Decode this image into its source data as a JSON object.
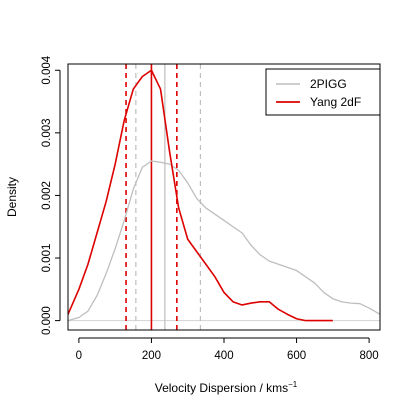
{
  "chart_data": {
    "type": "line",
    "xlabel": "Velocity Dispersion / kms",
    "xlabel_superscript": "−1",
    "ylabel": "Density",
    "xlim": [
      -30,
      830
    ],
    "ylim": [
      -0.00015,
      0.0041
    ],
    "x_ticks": [
      0,
      200,
      400,
      600,
      800
    ],
    "x_tick_labels": [
      "0",
      "200",
      "400",
      "600",
      "800"
    ],
    "y_ticks": [
      0.0,
      0.001,
      0.002,
      0.003,
      0.004
    ],
    "y_tick_labels": [
      "0.000",
      "0.001",
      "0.002",
      "0.003",
      "0.004"
    ],
    "grid": false,
    "legend_position": "top-right",
    "baseline_y": 0,
    "series": [
      {
        "name": "2PIGG",
        "color": "#bebebe",
        "x": [
          -30,
          0,
          25,
          50,
          75,
          100,
          125,
          150,
          175,
          200,
          225,
          250,
          275,
          300,
          325,
          350,
          375,
          400,
          425,
          450,
          475,
          500,
          525,
          550,
          575,
          600,
          625,
          650,
          675,
          700,
          725,
          750,
          775,
          800,
          830
        ],
        "y": [
          0.0,
          5e-05,
          0.00015,
          0.0004,
          0.00075,
          0.00115,
          0.0016,
          0.0021,
          0.00245,
          0.00255,
          0.00253,
          0.0025,
          0.0024,
          0.0022,
          0.00195,
          0.0018,
          0.0017,
          0.0016,
          0.0015,
          0.0014,
          0.0012,
          0.00105,
          0.00095,
          0.0009,
          0.00085,
          0.0008,
          0.0007,
          0.0006,
          0.00045,
          0.00035,
          0.0003,
          0.00028,
          0.00027,
          0.0002,
          0.0001
        ]
      },
      {
        "name": "Yang 2dF",
        "color": "#dd0000",
        "x": [
          -30,
          0,
          25,
          50,
          75,
          100,
          125,
          150,
          175,
          200,
          225,
          250,
          275,
          300,
          325,
          350,
          375,
          400,
          425,
          450,
          475,
          500,
          525,
          550,
          575,
          600,
          625,
          650,
          675,
          700
        ],
        "y": [
          0.0001,
          0.0005,
          0.0009,
          0.0014,
          0.0019,
          0.0025,
          0.0032,
          0.0037,
          0.0039,
          0.004,
          0.0037,
          0.0027,
          0.0018,
          0.0013,
          0.0011,
          0.0009,
          0.0007,
          0.00045,
          0.0003,
          0.00025,
          0.00028,
          0.0003,
          0.0003,
          0.00018,
          0.0001,
          3e-05,
          0.0,
          0.0,
          0.0,
          0.0
        ]
      }
    ],
    "vertical_lines": [
      {
        "x": 130,
        "color": "#dd0000",
        "style": "dashed"
      },
      {
        "x": 200,
        "color": "#dd0000",
        "style": "solid"
      },
      {
        "x": 270,
        "color": "#dd0000",
        "style": "dashed"
      },
      {
        "x": 157,
        "color": "#bebebe",
        "style": "dashed"
      },
      {
        "x": 237,
        "color": "#bebebe",
        "style": "solid"
      },
      {
        "x": 335,
        "color": "#bebebe",
        "style": "dashed"
      }
    ]
  }
}
